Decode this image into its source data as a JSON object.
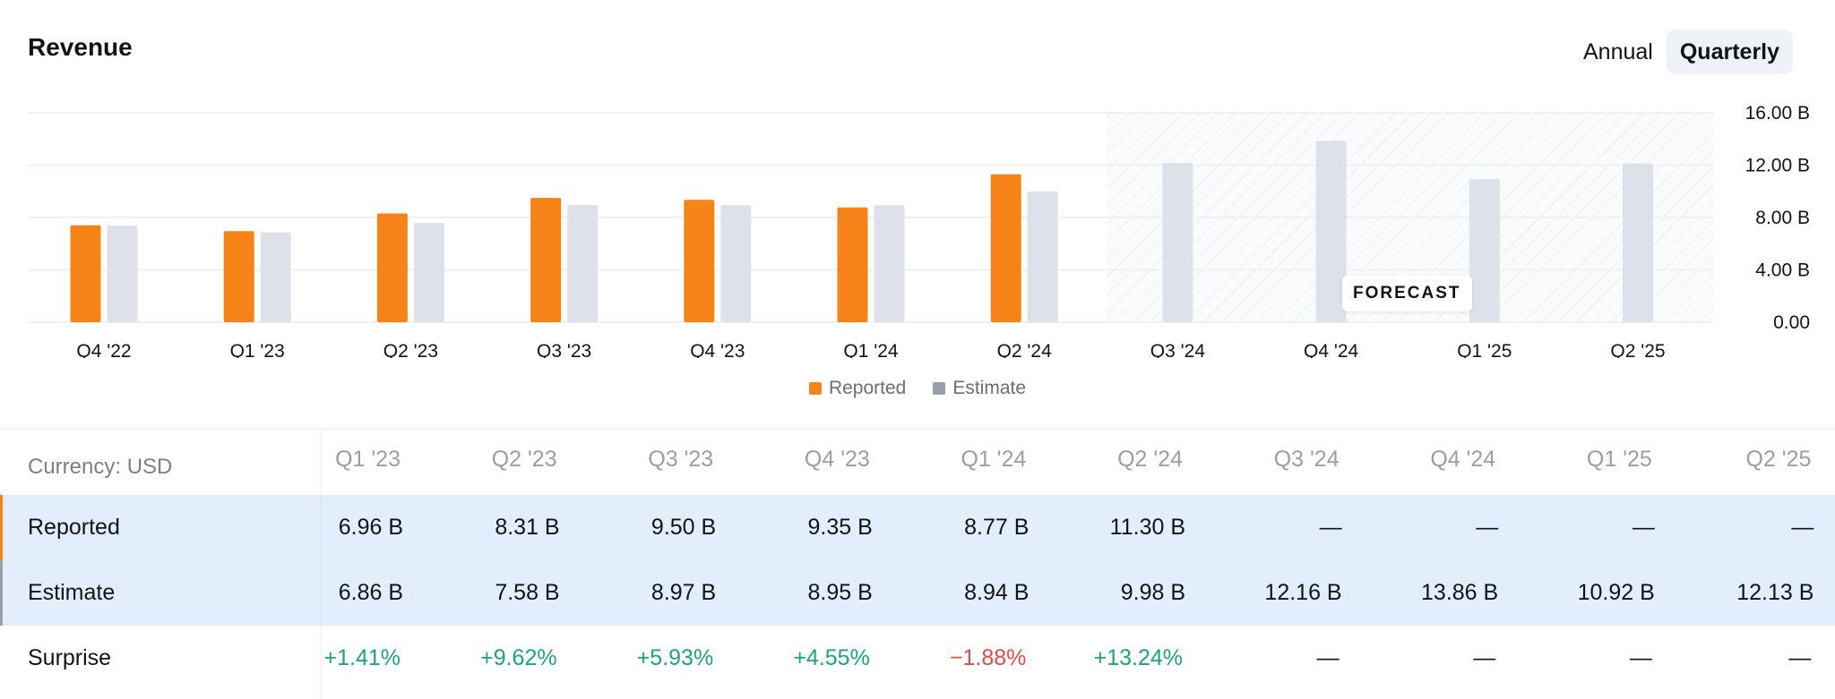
{
  "header": {
    "title": "Revenue",
    "toggle": [
      {
        "label": "Annual",
        "active": false
      },
      {
        "label": "Quarterly",
        "active": true
      }
    ]
  },
  "colors": {
    "reported": "#f58318",
    "estimate": "#dfe1ea",
    "estimate_legend": "#9aa0ab",
    "grid": "#eef0f3",
    "positive": "#1fa37b",
    "negative": "#e5484d"
  },
  "chart_data": {
    "type": "bar",
    "categories": [
      "Q4 '22",
      "Q1 '23",
      "Q2 '23",
      "Q3 '23",
      "Q4 '23",
      "Q1 '24",
      "Q2 '24",
      "Q3 '24",
      "Q4 '24",
      "Q1 '25",
      "Q2 '25"
    ],
    "series": [
      {
        "name": "Reported",
        "values": [
          7.4,
          6.96,
          8.31,
          9.5,
          9.35,
          8.77,
          11.3,
          null,
          null,
          null,
          null
        ]
      },
      {
        "name": "Estimate",
        "values": [
          7.4,
          6.86,
          7.58,
          8.97,
          8.95,
          8.94,
          9.98,
          12.16,
          13.86,
          10.92,
          12.13
        ]
      }
    ],
    "y_ticks": [
      "16.00 B",
      "12.00 B",
      "8.00 B",
      "4.00 B",
      "0.00"
    ],
    "ylim": [
      0,
      16
    ],
    "y_unit": "B",
    "y_axis_position": "right",
    "grid": true,
    "legend_position": "bottom-center",
    "forecast_start_index": 7,
    "forecast_label": "FORECAST"
  },
  "legend": [
    {
      "label": "Reported",
      "color": "#f58318"
    },
    {
      "label": "Estimate",
      "color": "#9aa0ab"
    }
  ],
  "table": {
    "currency_label": "Currency: USD",
    "columns": [
      "Q1 '23",
      "Q2 '23",
      "Q3 '23",
      "Q4 '23",
      "Q1 '24",
      "Q2 '24",
      "Q3 '24",
      "Q4 '24",
      "Q1 '25",
      "Q2 '25"
    ],
    "rows": [
      {
        "key": "reported",
        "label": "Reported",
        "values": [
          "6.96 B",
          "8.31 B",
          "9.50 B",
          "9.35 B",
          "8.77 B",
          "11.30 B",
          "—",
          "—",
          "—",
          "—"
        ]
      },
      {
        "key": "estimate",
        "label": "Estimate",
        "values": [
          "6.86 B",
          "7.58 B",
          "8.97 B",
          "8.95 B",
          "8.94 B",
          "9.98 B",
          "12.16 B",
          "13.86 B",
          "10.92 B",
          "12.13 B"
        ]
      },
      {
        "key": "surprise",
        "label": "Surprise",
        "values": [
          "+1.41%",
          "+9.62%",
          "+5.93%",
          "+4.55%",
          "−1.88%",
          "+13.24%",
          "—",
          "—",
          "—",
          "—"
        ]
      }
    ]
  }
}
